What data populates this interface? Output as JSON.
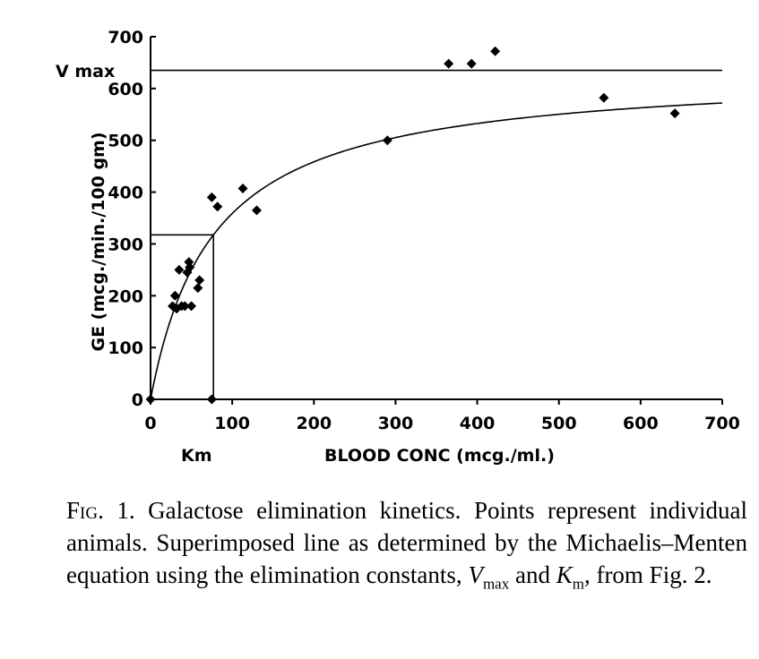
{
  "chart_data": {
    "type": "scatter",
    "xlabel": "BLOOD CONC (mcg./ml.)",
    "ylabel": "GE (mcg./min./100 gm)",
    "xlim": [
      0,
      700
    ],
    "ylim": [
      0,
      700
    ],
    "x_ticks": [
      "0",
      "100",
      "200",
      "300",
      "400",
      "500",
      "600",
      "700"
    ],
    "y_ticks": [
      "0",
      "100",
      "200",
      "300",
      "400",
      "500",
      "600",
      "700"
    ],
    "grid": false,
    "points": [
      {
        "x": 0,
        "y": 0
      },
      {
        "x": 27,
        "y": 180
      },
      {
        "x": 30,
        "y": 200
      },
      {
        "x": 32,
        "y": 175
      },
      {
        "x": 35,
        "y": 250
      },
      {
        "x": 38,
        "y": 180
      },
      {
        "x": 42,
        "y": 180
      },
      {
        "x": 45,
        "y": 245
      },
      {
        "x": 47,
        "y": 265
      },
      {
        "x": 48,
        "y": 255
      },
      {
        "x": 50,
        "y": 180
      },
      {
        "x": 58,
        "y": 215
      },
      {
        "x": 60,
        "y": 230
      },
      {
        "x": 75,
        "y": 0
      },
      {
        "x": 75,
        "y": 390
      },
      {
        "x": 82,
        "y": 372
      },
      {
        "x": 113,
        "y": 407
      },
      {
        "x": 130,
        "y": 365
      },
      {
        "x": 290,
        "y": 500
      },
      {
        "x": 365,
        "y": 648
      },
      {
        "x": 393,
        "y": 648
      },
      {
        "x": 422,
        "y": 672
      },
      {
        "x": 555,
        "y": 582
      },
      {
        "x": 642,
        "y": 552
      }
    ],
    "vmax": 635,
    "km": 77,
    "curve": "michaelis-menten",
    "annotations": {
      "vmax_label": "V max",
      "km_label": "Km"
    }
  },
  "caption": {
    "fig_label": "Fig. 1.",
    "text_1": " Galactose elimination kinetics. Points represent individual animals. Superimposed line as determined by the Michaelis–Menten equation using the elimination constants, ",
    "vmax_symbol": "V",
    "vmax_sub": "max",
    "text_2": " and ",
    "km_symbol": "K",
    "km_sub": "m",
    "text_3": ", from Fig. 2."
  }
}
